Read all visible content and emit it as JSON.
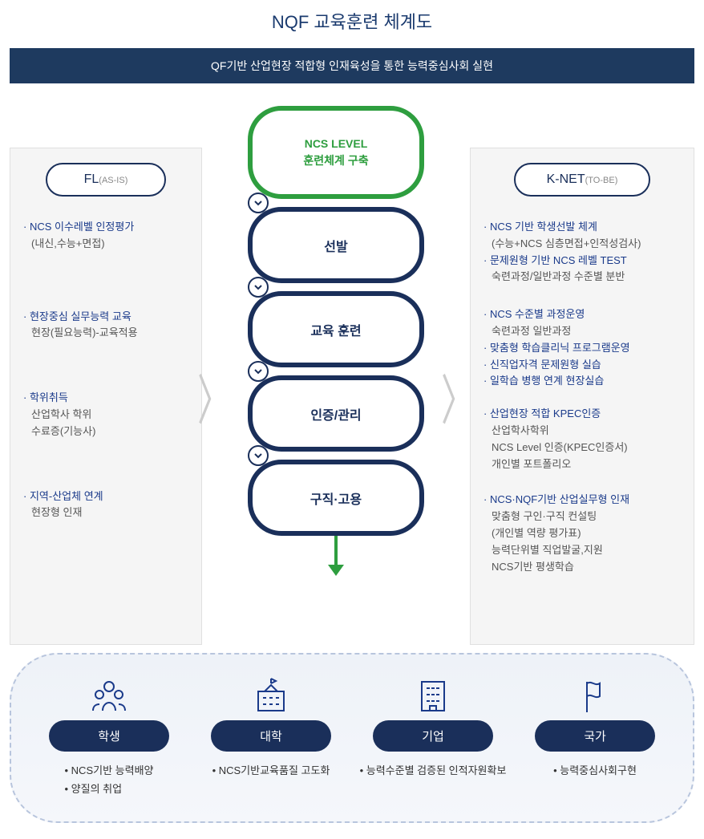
{
  "title": "NQF 교육훈련 체계도",
  "banner": "QF기반 산업현장 적합형 인재육성을 통한 능력중심사회 실현",
  "colors": {
    "primary_navy": "#1a2f5a",
    "accent_blue": "#1a3a8a",
    "green": "#2e9e3f",
    "panel_bg": "#f5f5f5",
    "panel_border": "#e0e0e0",
    "chevron": "#cccccc",
    "dash_border": "#b8c5dd",
    "bottom_bg": "#eef2f8"
  },
  "left": {
    "header": "FL",
    "header_sub": "(AS-IS)",
    "sections": [
      {
        "lead": "NCS 이수레벨 인정평가",
        "subs": [
          "(내신,수능+면접)"
        ]
      },
      {
        "lead": "현장중심 실무능력 교육",
        "subs": [
          "현장(필요능력)-교육적용"
        ]
      },
      {
        "lead": "학위취득",
        "subs": [
          "산업학사 학위",
          "수료증(기능사)"
        ]
      },
      {
        "lead": "지역-산업체 연계",
        "subs": [
          "현장형 인재"
        ]
      }
    ]
  },
  "right": {
    "header": "K-NET",
    "header_sub": "(TO-BE)",
    "sections": [
      {
        "items": [
          {
            "lead": "NCS 기반 학생선발 체계",
            "subs": [
              "(수능+NCS 심층면접+인적성검사)"
            ]
          },
          {
            "lead": "문제원형 기반 NCS 레벨 TEST",
            "subs": [
              "숙련과정/일반과정 수준별 분반"
            ]
          }
        ]
      },
      {
        "items": [
          {
            "lead": "NCS 수준별 과정운영",
            "subs": [
              "숙련과정 일반과정"
            ]
          },
          {
            "lead": "맞춤형 학습클리닉 프로그램운영",
            "subs": []
          },
          {
            "lead": "신직업자격 문제원형 실습",
            "subs": []
          },
          {
            "lead": "일학습 병행 연계 현장실습",
            "subs": []
          }
        ]
      },
      {
        "items": [
          {
            "lead": "산업현장 적합 KPEC인증",
            "subs": [
              "산업학사학위",
              "NCS Level 인증(KPEC인증서)",
              "개인별 포트폴리오"
            ]
          }
        ]
      },
      {
        "items": [
          {
            "lead": "NCS·NQF기반 산업실무형 인재",
            "subs": [
              "맞춤형 구인·구직 컨설팅",
              "(개인별 역량 평가표)",
              "능력단위별 직업발굴,지원",
              "NCS기반 평생학습"
            ]
          }
        ]
      }
    ]
  },
  "center": {
    "top": {
      "l1": "NCS LEVEL",
      "l2": "훈련체계 구축"
    },
    "stages": [
      "선발",
      "교육 훈련",
      "인증/관리",
      "구직·고용"
    ]
  },
  "bottom": [
    {
      "icon": "people",
      "label": "학생",
      "bullets": [
        "NCS기반 능력배양",
        "양질의 취업"
      ]
    },
    {
      "icon": "school",
      "label": "대학",
      "bullets": [
        "NCS기반교육품질 고도화"
      ]
    },
    {
      "icon": "building",
      "label": "기업",
      "bullets": [
        "능력수준별 검증된 인적자원확보"
      ]
    },
    {
      "icon": "flag",
      "label": "국가",
      "bullets": [
        "능력중심사회구현"
      ]
    }
  ]
}
